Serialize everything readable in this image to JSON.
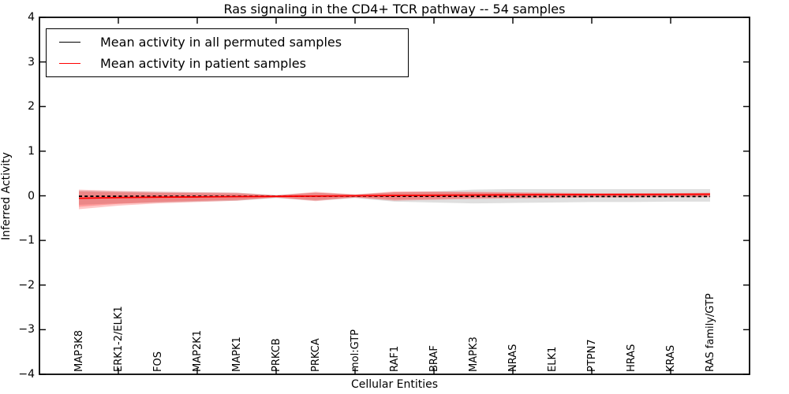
{
  "chart_data": {
    "type": "line",
    "title": "Ras signaling in the CD4+ TCR pathway -- 54 samples",
    "xlabel": "Cellular Entities",
    "ylabel": "Inferred Activity",
    "ylim": [
      -4,
      4
    ],
    "grid": false,
    "legend_position": "upper left",
    "yticks": [
      4,
      3,
      2,
      1,
      0,
      -1,
      -2,
      -3,
      -4
    ],
    "ytick_labels": [
      "4",
      "3",
      "2",
      "1",
      "0",
      "−1",
      "−2",
      "−3",
      "−4"
    ],
    "xtick_category_indices": [
      1,
      3,
      5,
      7,
      9,
      11,
      13,
      15
    ],
    "categories": [
      "MAP3K8",
      "ERK1-2/ELK1",
      "FOS",
      "MAP2K1",
      "MAPK1",
      "PRKCB",
      "PRKCA",
      "mol:GTP",
      "RAF1",
      "BRAF",
      "MAPK3",
      "NRAS",
      "ELK1",
      "PTPN7",
      "HRAS",
      "KRAS",
      "RAS family/GTP"
    ],
    "series": [
      {
        "name": "Mean activity in all permuted samples",
        "color": "#000000",
        "style": "dashed",
        "values": [
          -0.01,
          -0.01,
          -0.01,
          -0.01,
          -0.01,
          -0.01,
          -0.01,
          -0.005,
          -0.01,
          -0.01,
          -0.012,
          -0.015,
          -0.015,
          -0.015,
          -0.015,
          -0.015,
          -0.015
        ]
      },
      {
        "name": "Mean activity in patient samples",
        "color": "#ff0000",
        "style": "solid",
        "values": [
          -0.055,
          -0.04,
          -0.03,
          -0.025,
          -0.018,
          -0.012,
          -0.006,
          0.0,
          0.008,
          0.012,
          0.018,
          0.022,
          0.026,
          0.028,
          0.03,
          0.032,
          0.035
        ]
      }
    ],
    "bands": [
      {
        "name": "permuted-std-band",
        "color": "#bfbfbf",
        "opacity": 0.5,
        "upper": [
          0.12,
          0.1,
          0.09,
          0.08,
          0.07,
          0.02,
          0.07,
          0.03,
          0.08,
          0.1,
          0.14,
          0.15,
          0.15,
          0.15,
          0.15,
          0.15,
          0.15
        ],
        "lower": [
          -0.2,
          -0.17,
          -0.15,
          -0.13,
          -0.11,
          -0.05,
          -0.11,
          -0.05,
          -0.13,
          -0.15,
          -0.17,
          -0.16,
          -0.15,
          -0.14,
          -0.14,
          -0.13,
          -0.13
        ]
      },
      {
        "name": "patient-std-band",
        "color": "#ff0000",
        "opacity": 0.22,
        "inner_scale": 0.78,
        "inner_opacity": 0.22,
        "upper": [
          0.14,
          0.11,
          0.09,
          0.08,
          0.07,
          0.012,
          0.09,
          0.03,
          0.1,
          0.1,
          0.09,
          0.08,
          0.07,
          0.06,
          0.06,
          0.06,
          0.07
        ],
        "lower": [
          -0.3,
          -0.22,
          -0.17,
          -0.14,
          -0.11,
          -0.04,
          -0.12,
          -0.04,
          -0.11,
          -0.09,
          -0.07,
          -0.06,
          -0.05,
          -0.04,
          -0.04,
          -0.03,
          -0.03
        ]
      }
    ]
  }
}
